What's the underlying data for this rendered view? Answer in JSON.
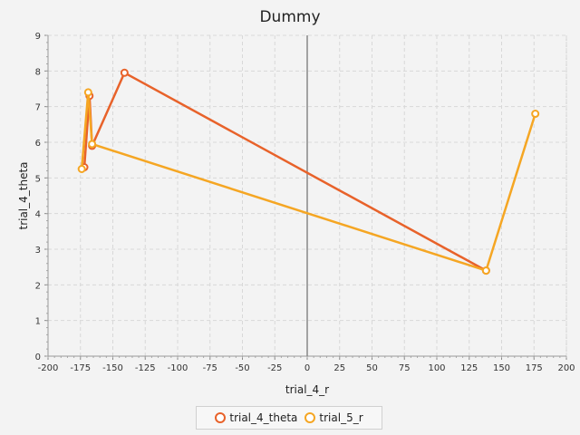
{
  "chart_data": {
    "type": "line",
    "title": "Dummy",
    "xlabel": "trial_4_r",
    "ylabel": "trial_4_theta",
    "xlim": [
      -200,
      200
    ],
    "ylim": [
      0,
      9
    ],
    "xticks": [
      -200,
      -175,
      -150,
      -125,
      -100,
      -75,
      -50,
      -25,
      0,
      25,
      50,
      75,
      100,
      125,
      150,
      175,
      200
    ],
    "yticks": [
      0,
      1,
      2,
      3,
      4,
      5,
      6,
      7,
      8,
      9
    ],
    "grid": true,
    "legend_position": "bottom",
    "series": [
      {
        "name": "trial_4_theta",
        "color": "#e8622a",
        "points": [
          {
            "x": -172,
            "y": 5.3
          },
          {
            "x": -168,
            "y": 7.3
          },
          {
            "x": -166,
            "y": 5.9
          },
          {
            "x": -141,
            "y": 7.95
          },
          {
            "x": 138,
            "y": 2.4
          }
        ]
      },
      {
        "name": "trial_5_r",
        "color": "#f5a623",
        "points": [
          {
            "x": 176,
            "y": 6.8
          },
          {
            "x": 138,
            "y": 2.4
          },
          {
            "x": -166,
            "y": 5.95
          },
          {
            "x": -169,
            "y": 7.4
          },
          {
            "x": -174,
            "y": 5.25
          }
        ]
      }
    ]
  }
}
